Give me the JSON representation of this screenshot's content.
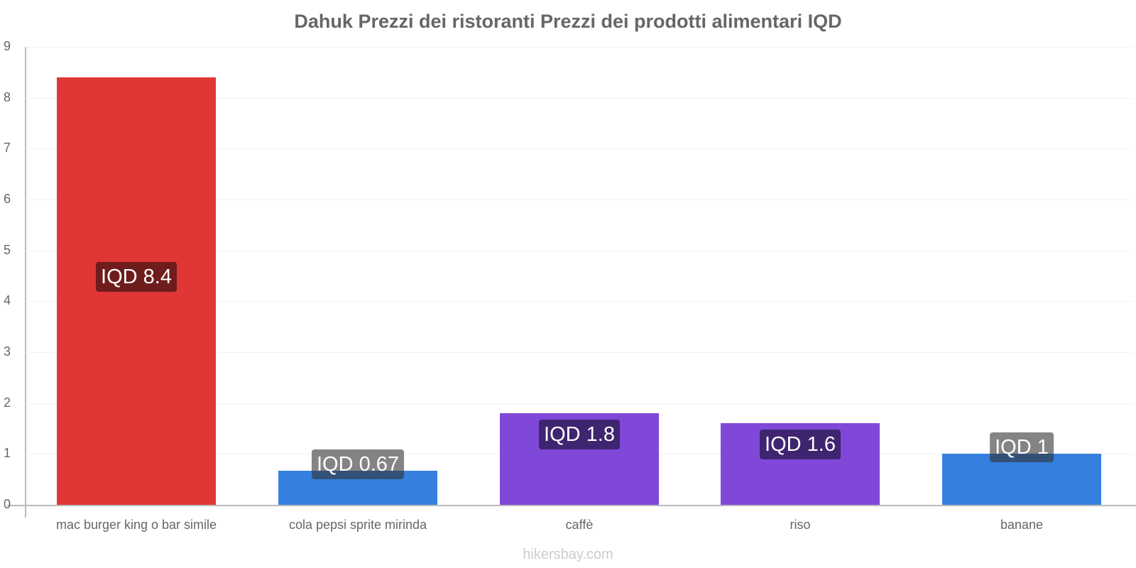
{
  "chart_data": {
    "type": "bar",
    "title": "Dahuk Prezzi dei ristoranti Prezzi dei prodotti alimentari IQD",
    "xlabel": "",
    "ylabel": "",
    "ylim": [
      0,
      9
    ],
    "yticks": [
      "0",
      "1",
      "2",
      "3",
      "4",
      "5",
      "6",
      "7",
      "8",
      "9"
    ],
    "grid": true,
    "legend": null,
    "categories": [
      "mac burger king o bar simile",
      "cola pepsi sprite mirinda",
      "caffè",
      "riso",
      "banane"
    ],
    "values": [
      8.4,
      0.67,
      1.8,
      1.6,
      1
    ],
    "value_labels": [
      "IQD 8.4",
      "IQD 0.67",
      "IQD 1.8",
      "IQD 1.6",
      "IQD 1"
    ],
    "bar_colors": [
      "#e03636",
      "#3580de",
      "#8048d8",
      "#8048d8",
      "#3580de"
    ],
    "label_bg_colors": [
      "#6e1c1c",
      "#808080",
      "#3f2470",
      "#3f2470",
      "#808080"
    ]
  },
  "watermark": "hikersbay.com"
}
